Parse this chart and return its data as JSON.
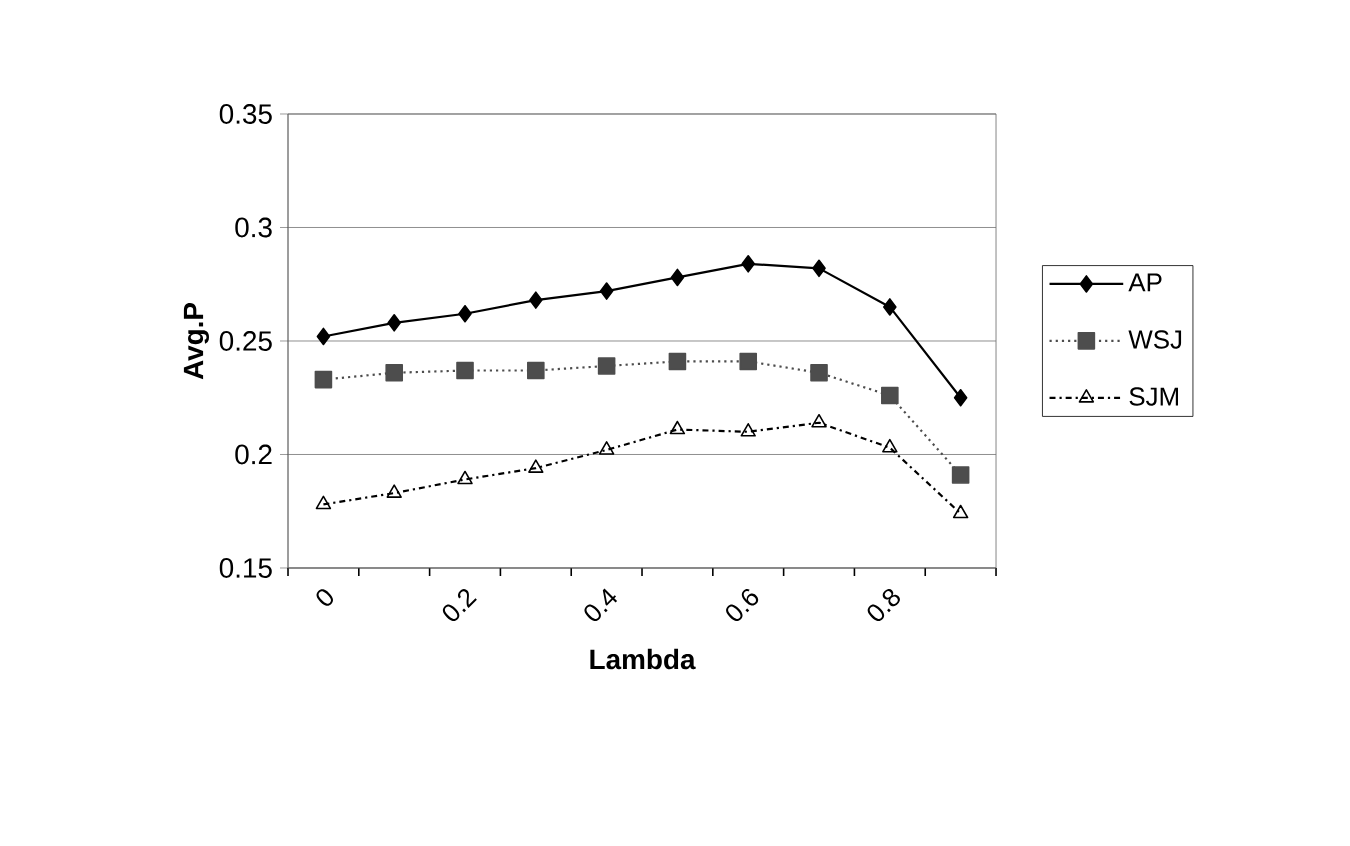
{
  "chart_data": {
    "type": "line",
    "xlabel": "Lambda",
    "ylabel": "Avg.P",
    "categories": [
      "0",
      null,
      "0.2",
      null,
      "0.4",
      null,
      "0.6",
      null,
      "0.8",
      null
    ],
    "series": [
      {
        "name": "AP",
        "color": "#000000",
        "marker": "diamond",
        "line_style": "solid",
        "values": [
          0.252,
          0.258,
          0.262,
          0.268,
          0.272,
          0.278,
          0.284,
          0.282,
          0.265,
          0.225
        ]
      },
      {
        "name": "WSJ",
        "color": "#4d4d4d",
        "marker": "square",
        "line_style": "dotted",
        "values": [
          0.233,
          0.236,
          0.237,
          0.237,
          0.239,
          0.241,
          0.241,
          0.236,
          0.226,
          0.191
        ]
      },
      {
        "name": "SJM",
        "color": "#000000",
        "marker": "triangle",
        "line_style": "dashdot",
        "values": [
          0.178,
          0.183,
          0.189,
          0.194,
          0.202,
          0.211,
          0.21,
          0.214,
          0.203,
          0.174
        ]
      }
    ],
    "ylim": [
      0.15,
      0.35
    ],
    "yticks": [
      0.15,
      0.2,
      0.25,
      0.3,
      0.35
    ],
    "grid": "y",
    "legend": "right"
  }
}
